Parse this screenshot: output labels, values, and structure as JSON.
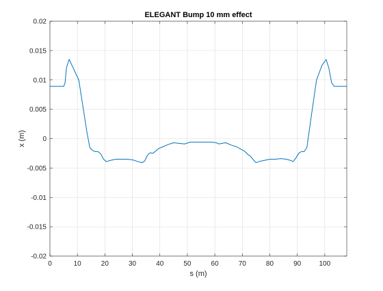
{
  "chart_data": {
    "type": "line",
    "title": "ELEGANT Bump 10 mm effect",
    "xlabel": "s (m)",
    "ylabel": "x (m)",
    "xlim": [
      0,
      108
    ],
    "ylim": [
      -0.02,
      0.02
    ],
    "grid": true,
    "legend": "none",
    "x_ticks": [
      0,
      10,
      20,
      30,
      40,
      50,
      60,
      70,
      80,
      90,
      100
    ],
    "x_tick_labels": [
      "0",
      "10",
      "20",
      "30",
      "40",
      "50",
      "60",
      "70",
      "80",
      "90",
      "100"
    ],
    "y_ticks": [
      0.02,
      0.015,
      0.01,
      0.005,
      0,
      -0.005,
      -0.01,
      -0.015,
      -0.02
    ],
    "y_tick_labels": [
      "0.02",
      "0.015",
      "0.01",
      "0.005",
      "0",
      "-0.005",
      "-0.01",
      "-0.015",
      "-0.02"
    ],
    "line_color": "#0072bd",
    "series": [
      {
        "x": [
          0,
          5,
          5.5,
          6,
          6.5,
          7,
          8,
          9,
          10.5,
          12,
          13.5,
          14.5,
          15.5,
          16.5,
          17.5,
          18.5,
          19.5,
          20.5,
          22,
          24,
          26,
          28,
          30,
          32,
          33.5,
          34.5,
          35.5,
          36.5,
          37.5,
          38.5,
          39.5,
          41,
          43,
          45,
          47,
          49,
          51,
          53,
          55,
          57,
          59,
          60.5,
          61.5,
          62.5,
          64,
          66,
          68,
          69.5,
          71,
          72,
          73,
          74,
          75,
          76,
          78,
          80,
          82,
          84,
          86,
          87.5,
          88.5,
          89.5,
          90.5,
          91.5,
          92.5,
          93.5,
          95,
          97,
          99,
          100.5,
          101.5,
          102.5,
          103.5,
          108
        ],
        "y": [
          0.0089,
          0.0089,
          0.0095,
          0.012,
          0.0128,
          0.0135,
          0.0125,
          0.0115,
          0.01,
          0.0055,
          0.001,
          -0.0015,
          -0.002,
          -0.0022,
          -0.0022,
          -0.0026,
          -0.0035,
          -0.0039,
          -0.0037,
          -0.0035,
          -0.0035,
          -0.0035,
          -0.0036,
          -0.0039,
          -0.0041,
          -0.0038,
          -0.0028,
          -0.0024,
          -0.0025,
          -0.0021,
          -0.0017,
          -0.0014,
          -0.001,
          -0.0007,
          -0.0008,
          -0.0009,
          -0.0006,
          -0.0006,
          -0.0006,
          -0.0006,
          -0.0006,
          -0.0007,
          -0.0009,
          -0.0008,
          -0.0007,
          -0.0011,
          -0.0014,
          -0.0018,
          -0.0022,
          -0.0027,
          -0.003,
          -0.0036,
          -0.0041,
          -0.0039,
          -0.0037,
          -0.0035,
          -0.0035,
          -0.0034,
          -0.0035,
          -0.0037,
          -0.0039,
          -0.0033,
          -0.0025,
          -0.0022,
          -0.0022,
          -0.0015,
          0.0035,
          0.01,
          0.0125,
          0.0135,
          0.012,
          0.0095,
          0.0089,
          0.0089
        ]
      }
    ]
  }
}
